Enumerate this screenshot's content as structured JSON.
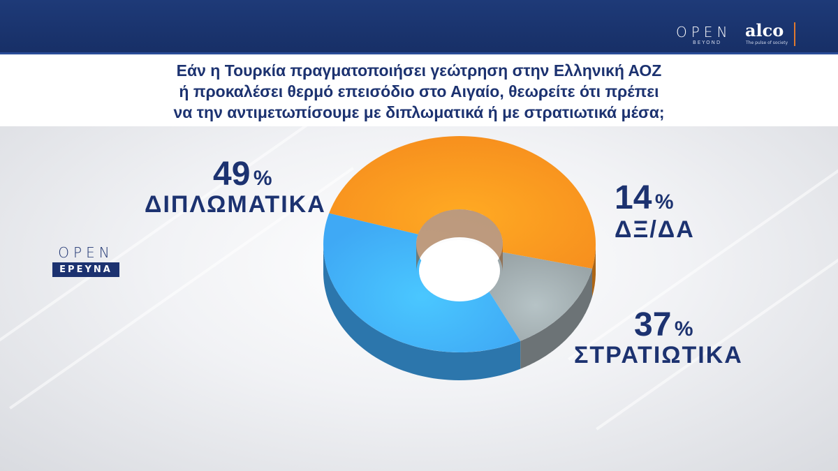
{
  "header": {
    "open_logo": "OPEN",
    "open_sub": "BEYOND",
    "alco_logo": "alco",
    "alco_tag": "The pulse of society"
  },
  "question": {
    "line1": "Εάν η Τουρκία πραγματοποιήσει γεώτρηση στην Ελληνική ΑΟΖ",
    "line2": "ή προκαλέσει θερμό επεισόδιο στο Αιγαίο, θεωρείτε ότι πρέπει",
    "line3": "να την αντιμετωπίσουμε με διπλωματικά ή με στρατιωτικά μέσα;"
  },
  "badge": {
    "open": "OPEN",
    "ereyna": "ΕΡΕΥΝΑ"
  },
  "chart_data": {
    "type": "pie",
    "variant": "donut-3d",
    "unit": "%",
    "slices": [
      {
        "label": "ΔΙΠΛΩΜΑΤΙΚΑ",
        "value": 49,
        "value_text": "49",
        "color": "#f7901e"
      },
      {
        "label": "Δ Ξ/ΔΑ",
        "value": 14,
        "value_text": "14",
        "color": "#9aa5a8"
      },
      {
        "label": "ΣΤΡΑΤΙΩΤΙΚΑ",
        "value": 37,
        "value_text": "37",
        "color": "#3fa9f5"
      }
    ]
  },
  "labels": {
    "diplomatic_value": "49",
    "diplomatic_pct": "%",
    "diplomatic_name": "ΔΙΠΛΩΜΑΤΙΚΑ",
    "dk_value": "14",
    "dk_pct": "%",
    "dk_name": "ΔΞ/ΔΑ",
    "military_value": "37",
    "military_pct": "%",
    "military_name": "ΣΤΡΑΤΙΩΤΙΚΑ"
  }
}
